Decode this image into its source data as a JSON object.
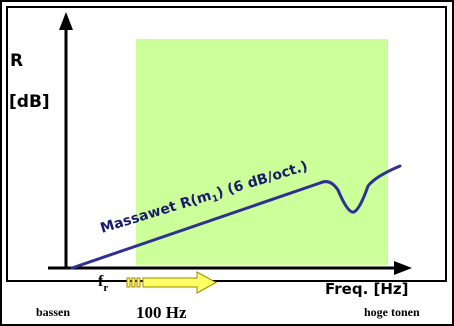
{
  "labels": {
    "y_axis_symbol": "R",
    "y_axis_unit": "[dB]",
    "curve_label_main": "Massawet  R(m",
    "curve_label_sub": "1",
    "curve_label_tail": ") (6 dB/oct.)",
    "resonance_symbol": "f",
    "resonance_sub": "r",
    "x_axis_label": "Freq. [Hz]",
    "frequency_marker": "100 Hz",
    "low_end_label": "bassen",
    "high_end_label": "hoge tonen"
  },
  "colors": {
    "outer_border": "#000000",
    "panel_border": "#000000",
    "panel_fill": "#ffffff",
    "mass_law_region": "#ccff99",
    "axis": "#000000",
    "curve": "#2e3192",
    "arrow_fill": "#ffff66",
    "arrow_stroke": "#a08800",
    "text": "#000000",
    "curve_text": "#1a1a6e"
  }
}
